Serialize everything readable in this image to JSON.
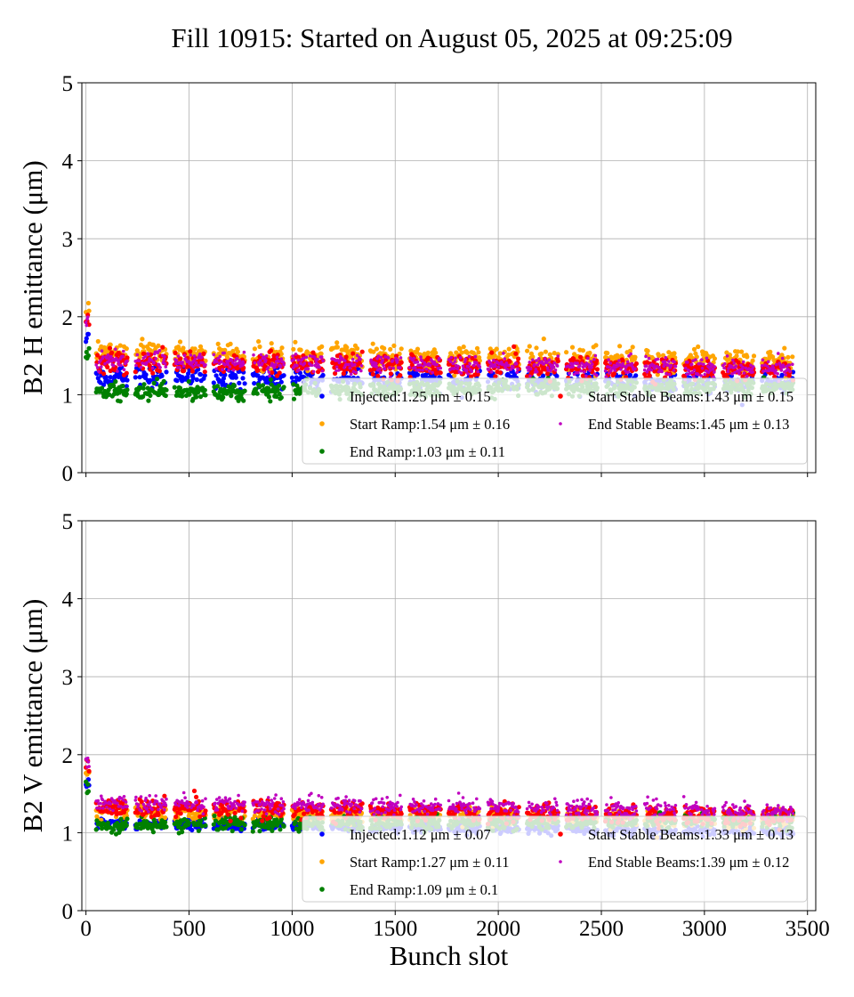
{
  "title": "Fill 10915: Started on August 05, 2025 at 09:25:09",
  "chart_data": [
    {
      "type": "scatter",
      "ylabel": "B2 H emittance (μm)",
      "xlabel": "",
      "xlim": [
        -20,
        3540
      ],
      "ylim": [
        0,
        5
      ],
      "xticks": [
        "0",
        "500",
        "1000",
        "1500",
        "2000",
        "2500",
        "3000",
        "3500"
      ],
      "yticks": [
        "0",
        "1",
        "2",
        "3",
        "4",
        "5"
      ],
      "grid": true,
      "legend_placement": "lower-right",
      "series": [
        {
          "name": "Injected:1.25 μm ± 0.15",
          "label": "Injected:1.25",
          "mean": 1.25,
          "std": 0.15,
          "color": "#0000ff"
        },
        {
          "name": "Start Ramp:1.54 μm ± 0.16",
          "label": "Start Ramp:1.54",
          "mean": 1.54,
          "std": 0.16,
          "color": "#ffa500"
        },
        {
          "name": "End Ramp:1.03 μm ± 0.11",
          "label": "End Ramp:1.03",
          "mean": 1.03,
          "std": 0.11,
          "color": "#008000"
        },
        {
          "name": "Start Stable Beams:1.43 μm ± 0.15",
          "label": "Start Stable Beams:1.43",
          "mean": 1.43,
          "std": 0.15,
          "color": "#ff0000"
        },
        {
          "name": "End Stable Beams:1.45 μm ± 0.13",
          "label": "End Stable Beams:1.45",
          "mean": 1.45,
          "std": 0.13,
          "color": "#bf00bf"
        }
      ]
    },
    {
      "type": "scatter",
      "ylabel": "B2 V emittance (μm)",
      "xlabel": "Bunch slot",
      "xlim": [
        -20,
        3540
      ],
      "ylim": [
        0,
        5
      ],
      "xticks": [
        "0",
        "500",
        "1000",
        "1500",
        "2000",
        "2500",
        "3000",
        "3500"
      ],
      "yticks": [
        "0",
        "1",
        "2",
        "3",
        "4",
        "5"
      ],
      "grid": true,
      "legend_placement": "lower-right",
      "series": [
        {
          "name": "Injected:1.12 μm ± 0.07",
          "label": "Injected:1.12",
          "mean": 1.12,
          "std": 0.07,
          "color": "#0000ff"
        },
        {
          "name": "Start Ramp:1.27 μm ± 0.11",
          "label": "Start Ramp:1.27",
          "mean": 1.27,
          "std": 0.11,
          "color": "#ffa500"
        },
        {
          "name": "End Ramp:1.09 μm ± 0.1",
          "label": "End Ramp:1.09",
          "mean": 1.09,
          "std": 0.1,
          "color": "#008000"
        },
        {
          "name": "Start Stable Beams:1.33 μm ± 0.13",
          "label": "Start Stable Beams:1.33",
          "mean": 1.33,
          "std": 0.13,
          "color": "#ff0000"
        },
        {
          "name": "End Stable Beams:1.39 μm ± 0.12",
          "label": "End Stable Beams:1.39",
          "mean": 1.39,
          "std": 0.12,
          "color": "#bf00bf"
        }
      ]
    }
  ]
}
